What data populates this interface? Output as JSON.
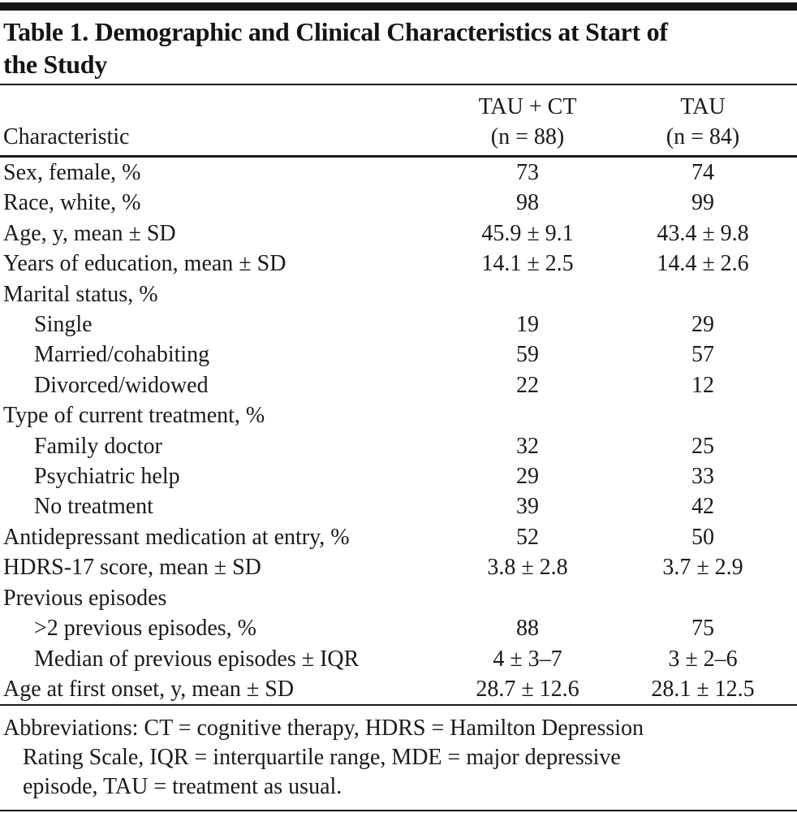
{
  "table": {
    "title_line1": "Table 1. Demographic and Clinical Characteristics at Start of",
    "title_line2": "the Study",
    "header": {
      "characteristic": "Characteristic",
      "group1_line1": "TAU + CT",
      "group1_line2": "(n = 88)",
      "group2_line1": "TAU",
      "group2_line2": "(n = 84)"
    },
    "rows": [
      {
        "label": "Sex, female, %",
        "tau_ct": "73",
        "tau": "74"
      },
      {
        "label": "Race, white, %",
        "tau_ct": "98",
        "tau": "99"
      },
      {
        "label": "Age, y, mean ± SD",
        "tau_ct": "45.9 ± 9.1",
        "tau": "43.4 ± 9.8"
      },
      {
        "label": "Years of education, mean ± SD",
        "tau_ct": "14.1 ± 2.5",
        "tau": "14.4 ± 2.6"
      },
      {
        "label": "Marital status, %",
        "tau_ct": "",
        "tau": ""
      },
      {
        "label": "Single",
        "tau_ct": "19",
        "tau": "29"
      },
      {
        "label": "Married/cohabiting",
        "tau_ct": "59",
        "tau": "57"
      },
      {
        "label": "Divorced/widowed",
        "tau_ct": "22",
        "tau": "12"
      },
      {
        "label": "Type of current treatment, %",
        "tau_ct": "",
        "tau": ""
      },
      {
        "label": "Family doctor",
        "tau_ct": "32",
        "tau": "25"
      },
      {
        "label": "Psychiatric help",
        "tau_ct": "29",
        "tau": "33"
      },
      {
        "label": "No treatment",
        "tau_ct": "39",
        "tau": "42"
      },
      {
        "label": "Antidepressant medication at entry, %",
        "tau_ct": "52",
        "tau": "50"
      },
      {
        "label": "HDRS-17 score, mean ± SD",
        "tau_ct": "3.8 ± 2.8",
        "tau": "3.7 ± 2.9"
      },
      {
        "label": "Previous episodes",
        "tau_ct": "",
        "tau": ""
      },
      {
        "label": ">2 previous episodes, %",
        "tau_ct": "88",
        "tau": "75"
      },
      {
        "label": "Median of previous episodes ± IQR",
        "tau_ct": "4 ± 3–7",
        "tau": "3 ± 2–6"
      },
      {
        "label": "Age at first onset, y, mean ± SD",
        "tau_ct": "28.7 ± 12.6",
        "tau": "28.1 ± 12.5"
      }
    ],
    "footnote_line1": "Abbreviations: CT = cognitive therapy, HDRS = Hamilton Depression",
    "footnote_line2": "Rating Scale, IQR = interquartile range, MDE = major depressive",
    "footnote_line3": "episode, TAU = treatment as usual.",
    "colors": {
      "text": "#1a1a1a",
      "rule": "#1a1a1a",
      "background": "#ffffff"
    }
  }
}
